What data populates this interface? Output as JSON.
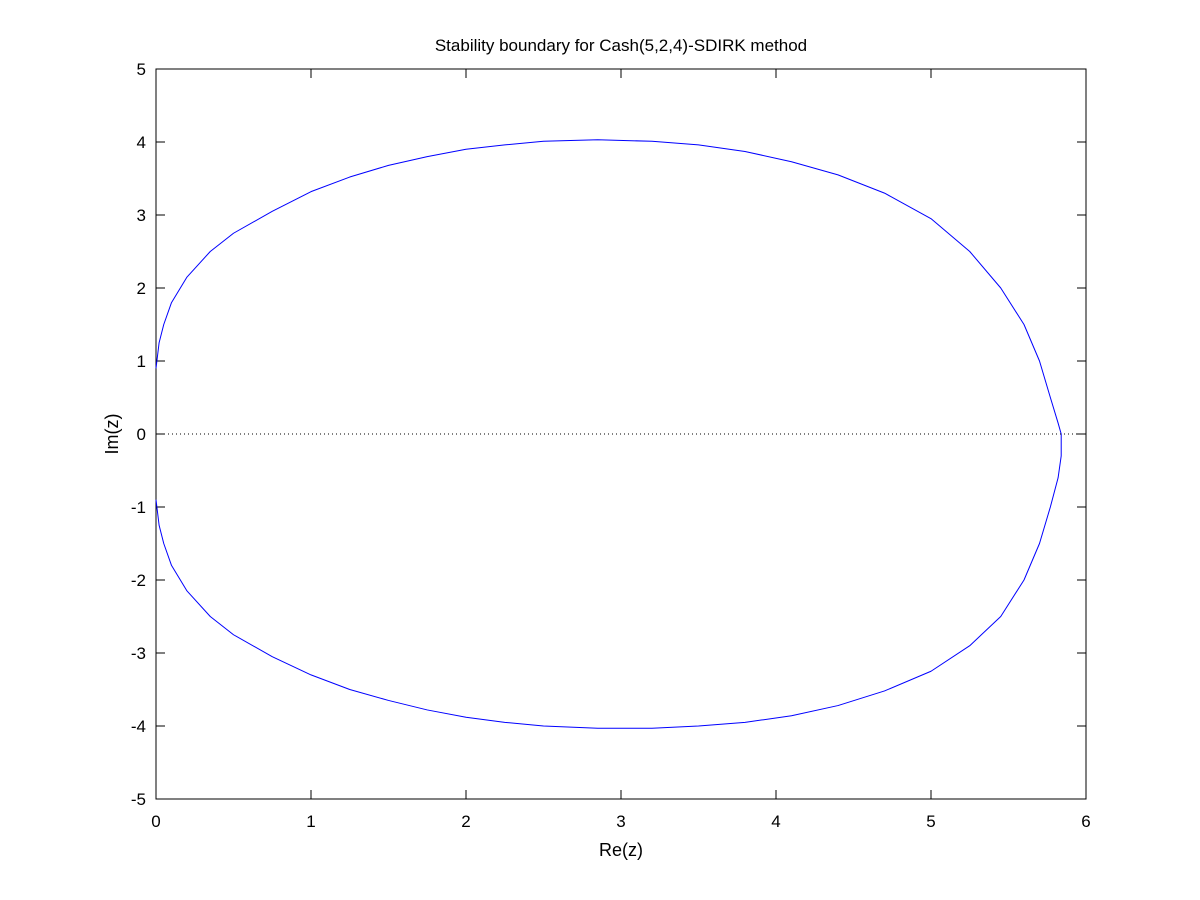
{
  "chart_data": {
    "type": "line",
    "title": "Stability boundary for Cash(5,2,4)-SDIRK method",
    "xlabel": "Re(z)",
    "ylabel": "Im(z)",
    "xlim": [
      0,
      6
    ],
    "ylim": [
      -5,
      5
    ],
    "xticks": [
      "0",
      "1",
      "2",
      "3",
      "4",
      "5",
      "6"
    ],
    "yticks": [
      "5",
      "4",
      "3",
      "2",
      "1",
      "0",
      "-1",
      "-2",
      "-3",
      "-4",
      "-5"
    ],
    "grid": false,
    "legend": "none",
    "series": [
      {
        "color": "#0000ff",
        "style": "solid",
        "x": [
          0.0,
          0.02,
          0.05,
          0.1,
          0.2,
          0.35,
          0.5,
          0.75,
          1.0,
          1.25,
          1.5,
          1.75,
          2.0,
          2.25,
          2.5,
          2.85,
          3.2,
          3.5,
          3.8,
          4.1,
          4.4,
          4.7,
          5.0,
          5.25,
          5.45,
          5.6,
          5.7,
          5.77,
          5.82,
          5.84,
          5.84,
          5.82,
          5.77,
          5.7,
          5.6,
          5.45,
          5.25,
          5.0,
          4.7,
          4.4,
          4.1,
          3.8,
          3.5,
          3.2,
          2.85,
          2.5,
          2.25,
          2.0,
          1.75,
          1.5,
          1.25,
          1.0,
          0.75,
          0.5,
          0.35,
          0.2,
          0.1,
          0.05,
          0.02,
          0.0
        ],
        "y": [
          0.9,
          1.25,
          1.5,
          1.8,
          2.15,
          2.5,
          2.75,
          3.05,
          3.32,
          3.52,
          3.68,
          3.8,
          3.9,
          3.96,
          4.01,
          4.03,
          4.01,
          3.96,
          3.87,
          3.73,
          3.55,
          3.3,
          2.95,
          2.5,
          2.0,
          1.5,
          1.0,
          0.5,
          0.15,
          0.0,
          -0.3,
          -0.6,
          -1.0,
          -1.5,
          -2.0,
          -2.5,
          -2.9,
          -3.25,
          -3.52,
          -3.72,
          -3.86,
          -3.95,
          -4.0,
          -4.03,
          -4.03,
          -4.0,
          -3.95,
          -3.88,
          -3.78,
          -3.65,
          -3.5,
          -3.3,
          -3.05,
          -2.75,
          -2.5,
          -2.15,
          -1.8,
          -1.5,
          -1.25,
          -0.9
        ]
      },
      {
        "color": "#000000",
        "style": "dotted",
        "x": [
          0,
          6
        ],
        "y": [
          0,
          0
        ]
      }
    ]
  }
}
